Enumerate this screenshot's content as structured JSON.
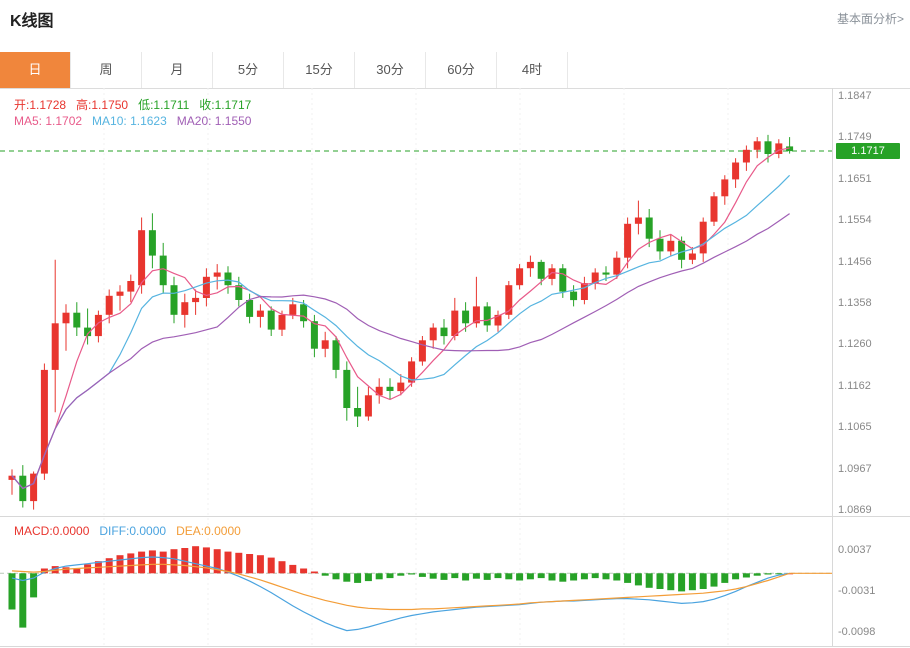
{
  "header": {
    "title": "K线图",
    "link": "基本面分析>"
  },
  "tabs": {
    "items": [
      "日",
      "周",
      "月",
      "5分",
      "15分",
      "30分",
      "60分",
      "4时"
    ],
    "active_index": 0
  },
  "legend": {
    "open_label": "开:1.1728",
    "high_label": "高:1.1750",
    "low_label": "低:1.1711",
    "close_label": "收:1.1717",
    "ma5_label": "MA5: 1.1702",
    "ma10_label": "MA10: 1.1623",
    "ma20_label": "MA20: 1.1550"
  },
  "price_badge": "1.1717",
  "colors": {
    "up": "#e8352e",
    "down": "#27a227",
    "ma5": "#e85a8a",
    "ma10": "#56b4e0",
    "ma20": "#a05fb5",
    "diff": "#4aa3df",
    "dea": "#f39d38",
    "macd_label": "#e8352e",
    "tab_active_bg": "#f0863c",
    "badge_bg": "#27a227",
    "axis_text": "#888888"
  },
  "chart_data": {
    "type": "candlestick",
    "title": "K线图",
    "ylim": [
      1.0869,
      1.1847
    ],
    "y_axis_ticks": [
      "1.1847",
      "1.1749",
      "1.1651",
      "1.1554",
      "1.1456",
      "1.1358",
      "1.1260",
      "1.1162",
      "1.1065",
      "1.0967",
      "1.0869"
    ],
    "current_price": 1.1717,
    "ohlc_display": {
      "open": 1.1728,
      "high": 1.175,
      "low": 1.1711,
      "close": 1.1717
    },
    "moving_averages_display": {
      "ma5": 1.1702,
      "ma10": 1.1623,
      "ma20": 1.155
    },
    "candles_ohlc": [
      [
        1.094,
        1.0965,
        1.0905,
        1.095
      ],
      [
        1.095,
        1.0975,
        1.0875,
        1.089
      ],
      [
        1.089,
        1.096,
        1.087,
        1.0955
      ],
      [
        1.0955,
        1.1215,
        1.094,
        1.12
      ],
      [
        1.12,
        1.146,
        1.11,
        1.131
      ],
      [
        1.131,
        1.1355,
        1.1245,
        1.1335
      ],
      [
        1.1335,
        1.136,
        1.128,
        1.13
      ],
      [
        1.13,
        1.1345,
        1.126,
        1.128
      ],
      [
        1.128,
        1.134,
        1.1265,
        1.133
      ],
      [
        1.133,
        1.139,
        1.131,
        1.1375
      ],
      [
        1.1375,
        1.14,
        1.134,
        1.1385
      ],
      [
        1.1385,
        1.1425,
        1.136,
        1.141
      ],
      [
        1.14,
        1.156,
        1.138,
        1.153
      ],
      [
        1.153,
        1.157,
        1.144,
        1.147
      ],
      [
        1.147,
        1.15,
        1.138,
        1.14
      ],
      [
        1.14,
        1.142,
        1.131,
        1.133
      ],
      [
        1.133,
        1.138,
        1.13,
        1.136
      ],
      [
        1.136,
        1.139,
        1.133,
        1.137
      ],
      [
        1.137,
        1.144,
        1.135,
        1.142
      ],
      [
        1.142,
        1.145,
        1.139,
        1.143
      ],
      [
        1.143,
        1.1445,
        1.138,
        1.14
      ],
      [
        1.14,
        1.142,
        1.135,
        1.1365
      ],
      [
        1.1365,
        1.138,
        1.131,
        1.1325
      ],
      [
        1.1325,
        1.1355,
        1.13,
        1.134
      ],
      [
        1.134,
        1.135,
        1.128,
        1.1295
      ],
      [
        1.1295,
        1.134,
        1.128,
        1.133
      ],
      [
        1.133,
        1.137,
        1.132,
        1.1355
      ],
      [
        1.1355,
        1.1365,
        1.13,
        1.1315
      ],
      [
        1.1315,
        1.133,
        1.123,
        1.125
      ],
      [
        1.125,
        1.129,
        1.123,
        1.127
      ],
      [
        1.127,
        1.128,
        1.118,
        1.12
      ],
      [
        1.12,
        1.122,
        1.108,
        1.111
      ],
      [
        1.111,
        1.116,
        1.1065,
        1.109
      ],
      [
        1.109,
        1.116,
        1.108,
        1.114
      ],
      [
        1.114,
        1.118,
        1.112,
        1.116
      ],
      [
        1.116,
        1.118,
        1.113,
        1.115
      ],
      [
        1.115,
        1.119,
        1.114,
        1.117
      ],
      [
        1.117,
        1.123,
        1.116,
        1.122
      ],
      [
        1.122,
        1.128,
        1.121,
        1.127
      ],
      [
        1.127,
        1.131,
        1.125,
        1.13
      ],
      [
        1.13,
        1.132,
        1.126,
        1.128
      ],
      [
        1.128,
        1.137,
        1.127,
        1.134
      ],
      [
        1.134,
        1.136,
        1.129,
        1.131
      ],
      [
        1.131,
        1.142,
        1.13,
        1.135
      ],
      [
        1.135,
        1.136,
        1.129,
        1.1305
      ],
      [
        1.1305,
        1.134,
        1.129,
        1.133
      ],
      [
        1.133,
        1.141,
        1.132,
        1.14
      ],
      [
        1.14,
        1.145,
        1.139,
        1.144
      ],
      [
        1.144,
        1.147,
        1.142,
        1.1455
      ],
      [
        1.1455,
        1.146,
        1.14,
        1.1415
      ],
      [
        1.1415,
        1.145,
        1.14,
        1.144
      ],
      [
        1.144,
        1.145,
        1.137,
        1.1385
      ],
      [
        1.1385,
        1.14,
        1.135,
        1.1365
      ],
      [
        1.1365,
        1.142,
        1.1355,
        1.1405
      ],
      [
        1.1405,
        1.144,
        1.139,
        1.143
      ],
      [
        1.143,
        1.1445,
        1.141,
        1.1425
      ],
      [
        1.1425,
        1.148,
        1.1415,
        1.1465
      ],
      [
        1.1465,
        1.156,
        1.144,
        1.1545
      ],
      [
        1.1545,
        1.16,
        1.152,
        1.156
      ],
      [
        1.156,
        1.158,
        1.149,
        1.151
      ],
      [
        1.151,
        1.153,
        1.146,
        1.148
      ],
      [
        1.148,
        1.152,
        1.147,
        1.1505
      ],
      [
        1.1505,
        1.1515,
        1.144,
        1.146
      ],
      [
        1.146,
        1.149,
        1.145,
        1.1475
      ],
      [
        1.1475,
        1.156,
        1.1455,
        1.155
      ],
      [
        1.155,
        1.162,
        1.154,
        1.161
      ],
      [
        1.161,
        1.166,
        1.159,
        1.165
      ],
      [
        1.165,
        1.17,
        1.163,
        1.169
      ],
      [
        1.169,
        1.173,
        1.167,
        1.172
      ],
      [
        1.172,
        1.175,
        1.17,
        1.174
      ],
      [
        1.174,
        1.1755,
        1.169,
        1.171
      ],
      [
        1.171,
        1.1745,
        1.17,
        1.1735
      ],
      [
        1.1728,
        1.175,
        1.1711,
        1.1717
      ]
    ],
    "macd": {
      "labels": {
        "macd": "MACD:0.0000",
        "diff": "DIFF:0.0000",
        "dea": "DEA:0.0000"
      },
      "y_axis_ticks": [
        "0.0037",
        "-0.0031",
        "-0.0098"
      ],
      "ylim": [
        -0.0098,
        0.0037
      ],
      "histogram": [
        -0.006,
        -0.009,
        -0.004,
        0.0008,
        0.0012,
        0.001,
        0.0008,
        0.0015,
        0.002,
        0.0025,
        0.003,
        0.0033,
        0.0036,
        0.0038,
        0.0036,
        0.004,
        0.0042,
        0.0045,
        0.0043,
        0.004,
        0.0036,
        0.0034,
        0.0032,
        0.003,
        0.0026,
        0.002,
        0.0014,
        0.0008,
        0.0003,
        -0.0004,
        -0.001,
        -0.0014,
        -0.0016,
        -0.0013,
        -0.001,
        -0.0008,
        -0.0004,
        -0.0002,
        -0.0006,
        -0.0009,
        -0.0011,
        -0.0008,
        -0.0012,
        -0.0009,
        -0.0011,
        -0.0008,
        -0.001,
        -0.0012,
        -0.001,
        -0.0008,
        -0.0012,
        -0.0014,
        -0.0012,
        -0.001,
        -0.0008,
        -0.001,
        -0.0012,
        -0.0016,
        -0.002,
        -0.0024,
        -0.0026,
        -0.0028,
        -0.003,
        -0.0028,
        -0.0026,
        -0.0022,
        -0.0016,
        -0.001,
        -0.0007,
        -0.0004,
        -0.0002,
        -0.0001,
        0.0
      ],
      "diff_line": [
        -0.0008,
        -0.0012,
        -0.0008,
        0.0002,
        0.0008,
        0.0012,
        0.0014,
        0.0016,
        0.0018,
        0.002,
        0.0022,
        0.0024,
        0.0026,
        0.0027,
        0.0026,
        0.0024,
        0.002,
        0.0016,
        0.0012,
        0.0008,
        0.0002,
        -0.0005,
        -0.0013,
        -0.0022,
        -0.0032,
        -0.0043,
        -0.0054,
        -0.0064,
        -0.0073,
        -0.0082,
        -0.0089,
        -0.0095,
        -0.0093,
        -0.0089,
        -0.0084,
        -0.0079,
        -0.0074,
        -0.007,
        -0.0067,
        -0.0064,
        -0.0062,
        -0.006,
        -0.0058,
        -0.0056,
        -0.0055,
        -0.0054,
        -0.0053,
        -0.0052,
        -0.005,
        -0.0048,
        -0.0047,
        -0.0046,
        -0.0046,
        -0.0045,
        -0.0044,
        -0.0043,
        -0.0042,
        -0.0042,
        -0.0043,
        -0.0044,
        -0.0046,
        -0.0048,
        -0.005,
        -0.0049,
        -0.0047,
        -0.0043,
        -0.0037,
        -0.003,
        -0.0022,
        -0.0015,
        -0.0008,
        -0.0003,
        0.0
      ],
      "dea_line": [
        0.0004,
        0.0003,
        0.0002,
        0.0003,
        0.0005,
        0.0007,
        0.0008,
        0.0009,
        0.001,
        0.0011,
        0.0012,
        0.0013,
        0.0014,
        0.0015,
        0.0015,
        0.0014,
        0.0013,
        0.0011,
        0.0009,
        0.0006,
        0.0003,
        -0.0001,
        -0.0006,
        -0.0011,
        -0.0017,
        -0.0023,
        -0.0029,
        -0.0035,
        -0.004,
        -0.0045,
        -0.0049,
        -0.0053,
        -0.0056,
        -0.0058,
        -0.0059,
        -0.006,
        -0.006,
        -0.006,
        -0.0059,
        -0.0059,
        -0.0058,
        -0.0057,
        -0.0056,
        -0.0055,
        -0.0054,
        -0.0053,
        -0.0052,
        -0.0051,
        -0.0049,
        -0.0048,
        -0.0047,
        -0.0046,
        -0.0045,
        -0.0044,
        -0.0043,
        -0.0042,
        -0.0041,
        -0.004,
        -0.0039,
        -0.0038,
        -0.0037,
        -0.0036,
        -0.0035,
        -0.0034,
        -0.0033,
        -0.0031,
        -0.0029,
        -0.0026,
        -0.0022,
        -0.0017,
        -0.0012,
        -0.0006,
        0.0
      ]
    }
  }
}
